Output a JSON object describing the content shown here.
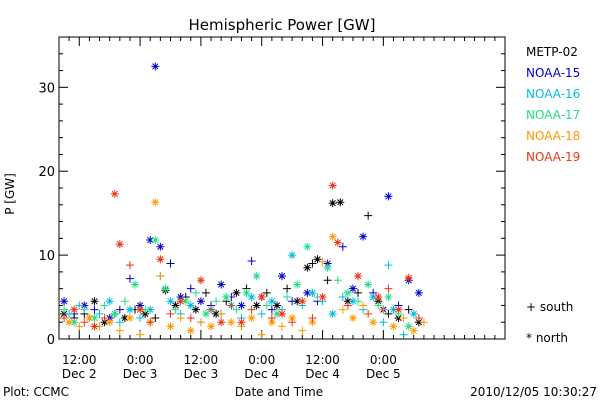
{
  "chart_data": {
    "type": "scatter",
    "title": "Hemispheric Power [GW]",
    "xlabel": "Date and Time",
    "ylabel": "P [GW]",
    "ylim": [
      0,
      36
    ],
    "xlim_hours": [
      -4,
      84
    ],
    "yticks": [
      0,
      10,
      20,
      30
    ],
    "xticks": [
      {
        "h": 0,
        "time": "12:00",
        "date": "Dec 2"
      },
      {
        "h": 12,
        "time": "0:00",
        "date": "Dec 3"
      },
      {
        "h": 24,
        "time": "12:00",
        "date": "Dec 3"
      },
      {
        "h": 36,
        "time": "0:00",
        "date": "Dec 4"
      },
      {
        "h": 48,
        "time": "12:00",
        "date": "Dec 4"
      },
      {
        "h": 60,
        "time": "0:00",
        "date": "Dec 5"
      }
    ],
    "marker_legend": [
      {
        "symbol": "+",
        "label": "south"
      },
      {
        "symbol": "*",
        "label": "north"
      }
    ],
    "series": [
      {
        "name": "METP-02",
        "color": "#000000",
        "points": [
          [
            -3,
            3,
            "n"
          ],
          [
            -1,
            2.5,
            "s"
          ],
          [
            1,
            3,
            "s"
          ],
          [
            3,
            4.5,
            "n"
          ],
          [
            5,
            2,
            "n"
          ],
          [
            7,
            3,
            "s"
          ],
          [
            9,
            2.5,
            "n"
          ],
          [
            11,
            3.5,
            "s"
          ],
          [
            13,
            3,
            "n"
          ],
          [
            15,
            2.5,
            "s"
          ],
          [
            17,
            5.8,
            "n"
          ],
          [
            19,
            4,
            "n"
          ],
          [
            21,
            5,
            "s"
          ],
          [
            23,
            3.5,
            "n"
          ],
          [
            25,
            5.5,
            "s"
          ],
          [
            27,
            3,
            "n"
          ],
          [
            29,
            4.5,
            "s"
          ],
          [
            31,
            5.5,
            "n"
          ],
          [
            33,
            6,
            "s"
          ],
          [
            35,
            4,
            "n"
          ],
          [
            37,
            5.5,
            "s"
          ],
          [
            39,
            4,
            "n"
          ],
          [
            41,
            6,
            "s"
          ],
          [
            43,
            4.5,
            "n"
          ],
          [
            45,
            8.5,
            "n"
          ],
          [
            46,
            9,
            "s"
          ],
          [
            47,
            9.5,
            "n"
          ],
          [
            49,
            7,
            "s"
          ],
          [
            50,
            16.2,
            "n"
          ],
          [
            51.5,
            16.3,
            "n"
          ],
          [
            53,
            4.5,
            "n"
          ],
          [
            55,
            5.5,
            "s"
          ],
          [
            57,
            14.7,
            "s"
          ],
          [
            59,
            4.5,
            "n"
          ],
          [
            61,
            3,
            "s"
          ],
          [
            63,
            2.5,
            "n"
          ],
          [
            65,
            3.5,
            "s"
          ],
          [
            67,
            2,
            "n"
          ]
        ]
      },
      {
        "name": "NOAA-15",
        "color": "#0000cc",
        "points": [
          [
            -3,
            4.5,
            "n"
          ],
          [
            -1,
            3,
            "s"
          ],
          [
            1,
            4,
            "n"
          ],
          [
            3,
            3.5,
            "s"
          ],
          [
            6,
            2.5,
            "n"
          ],
          [
            8,
            3.5,
            "s"
          ],
          [
            10,
            7.2,
            "s"
          ],
          [
            12,
            4,
            "n"
          ],
          [
            14,
            11.8,
            "n"
          ],
          [
            15,
            32.5,
            "n"
          ],
          [
            16,
            11,
            "n"
          ],
          [
            18,
            9,
            "s"
          ],
          [
            20,
            5,
            "n"
          ],
          [
            22,
            6,
            "s"
          ],
          [
            24,
            4.5,
            "n"
          ],
          [
            26,
            4,
            "s"
          ],
          [
            28,
            6.5,
            "n"
          ],
          [
            30,
            5,
            "s"
          ],
          [
            32,
            4,
            "n"
          ],
          [
            34,
            9.3,
            "s"
          ],
          [
            36,
            5,
            "n"
          ],
          [
            38,
            3.5,
            "s"
          ],
          [
            40,
            7.5,
            "n"
          ],
          [
            42,
            4.5,
            "s"
          ],
          [
            45,
            5.5,
            "n"
          ],
          [
            47,
            4.5,
            "s"
          ],
          [
            49,
            9,
            "n"
          ],
          [
            52,
            11,
            "s"
          ],
          [
            54,
            6,
            "n"
          ],
          [
            56,
            12.2,
            "n"
          ],
          [
            58,
            5.5,
            "s"
          ],
          [
            60,
            3.5,
            "n"
          ],
          [
            61,
            17,
            "n"
          ],
          [
            63,
            4,
            "s"
          ],
          [
            65,
            7,
            "n"
          ],
          [
            67,
            5.5,
            "n"
          ]
        ]
      },
      {
        "name": "NOAA-16",
        "color": "#00bbdd",
        "points": [
          [
            -2,
            3,
            "s"
          ],
          [
            0,
            4,
            "s"
          ],
          [
            2,
            2.5,
            "n"
          ],
          [
            4,
            3,
            "s"
          ],
          [
            6,
            4.5,
            "n"
          ],
          [
            8,
            2,
            "s"
          ],
          [
            10,
            3.5,
            "n"
          ],
          [
            12,
            2.5,
            "s"
          ],
          [
            14,
            3.5,
            "n"
          ],
          [
            16,
            7.5,
            "s"
          ],
          [
            18,
            4.5,
            "n"
          ],
          [
            20,
            3,
            "s"
          ],
          [
            22,
            4,
            "n"
          ],
          [
            24,
            2,
            "s"
          ],
          [
            26,
            3.5,
            "n"
          ],
          [
            28,
            3,
            "s"
          ],
          [
            30,
            4,
            "n"
          ],
          [
            32,
            2.5,
            "s"
          ],
          [
            34,
            5,
            "n"
          ],
          [
            36,
            3,
            "s"
          ],
          [
            38,
            4.5,
            "n"
          ],
          [
            40,
            3.5,
            "s"
          ],
          [
            42,
            10,
            "n"
          ],
          [
            44,
            4,
            "s"
          ],
          [
            46,
            5.5,
            "n"
          ],
          [
            48,
            4.5,
            "s"
          ],
          [
            50,
            3,
            "n"
          ],
          [
            52,
            5,
            "s"
          ],
          [
            54,
            4.5,
            "n"
          ],
          [
            56,
            3.5,
            "s"
          ],
          [
            58,
            5,
            "n"
          ],
          [
            60,
            2,
            "s"
          ],
          [
            61,
            8.8,
            "s"
          ],
          [
            62,
            3.5,
            "n"
          ],
          [
            64,
            0.5,
            "s"
          ],
          [
            66,
            3,
            "n"
          ]
        ]
      },
      {
        "name": "NOAA-17",
        "color": "#22dd88",
        "points": [
          [
            -3,
            3.5,
            "s"
          ],
          [
            -1,
            2,
            "n"
          ],
          [
            1,
            3.5,
            "s"
          ],
          [
            3,
            2.5,
            "n"
          ],
          [
            5,
            4,
            "s"
          ],
          [
            7,
            3,
            "n"
          ],
          [
            9,
            4.5,
            "s"
          ],
          [
            11,
            6.5,
            "n"
          ],
          [
            13,
            3.5,
            "s"
          ],
          [
            15,
            11.8,
            "n"
          ],
          [
            17,
            6,
            "n"
          ],
          [
            19,
            3.5,
            "s"
          ],
          [
            21,
            4.5,
            "n"
          ],
          [
            23,
            5.5,
            "s"
          ],
          [
            25,
            3,
            "n"
          ],
          [
            27,
            4.5,
            "s"
          ],
          [
            29,
            5,
            "n"
          ],
          [
            31,
            3.5,
            "s"
          ],
          [
            33,
            5.5,
            "n"
          ],
          [
            35,
            7.5,
            "n"
          ],
          [
            37,
            4,
            "s"
          ],
          [
            39,
            3,
            "n"
          ],
          [
            41,
            5,
            "s"
          ],
          [
            43,
            6.5,
            "n"
          ],
          [
            45,
            11,
            "n"
          ],
          [
            47,
            5,
            "s"
          ],
          [
            49,
            8.5,
            "n"
          ],
          [
            51,
            7,
            "s"
          ],
          [
            53,
            5.5,
            "n"
          ],
          [
            55,
            4.5,
            "s"
          ],
          [
            57,
            6.5,
            "n"
          ],
          [
            59,
            4,
            "s"
          ],
          [
            61,
            5,
            "n"
          ],
          [
            63,
            3,
            "s"
          ],
          [
            65,
            1.5,
            "n"
          ]
        ]
      },
      {
        "name": "NOAA-18",
        "color": "#ff9900",
        "points": [
          [
            -2,
            2,
            "n"
          ],
          [
            0,
            1.5,
            "s"
          ],
          [
            2,
            2.5,
            "n"
          ],
          [
            4,
            1.5,
            "s"
          ],
          [
            6,
            2,
            "n"
          ],
          [
            8,
            1,
            "s"
          ],
          [
            10,
            2.5,
            "n"
          ],
          [
            12,
            0.5,
            "s"
          ],
          [
            14,
            2,
            "n"
          ],
          [
            15,
            16.3,
            "n"
          ],
          [
            16,
            7.5,
            "s"
          ],
          [
            18,
            1.5,
            "n"
          ],
          [
            20,
            2.5,
            "s"
          ],
          [
            22,
            1,
            "n"
          ],
          [
            24,
            2,
            "s"
          ],
          [
            26,
            1.5,
            "n"
          ],
          [
            28,
            3,
            "s"
          ],
          [
            30,
            2,
            "n"
          ],
          [
            32,
            1.5,
            "s"
          ],
          [
            34,
            2.5,
            "n"
          ],
          [
            36,
            0.5,
            "s"
          ],
          [
            38,
            2,
            "n"
          ],
          [
            40,
            1.5,
            "s"
          ],
          [
            42,
            2.5,
            "n"
          ],
          [
            44,
            1,
            "s"
          ],
          [
            46,
            2,
            "n"
          ],
          [
            48,
            9.2,
            "s"
          ],
          [
            50,
            12.2,
            "n"
          ],
          [
            52,
            3.5,
            "s"
          ],
          [
            54,
            2.5,
            "n"
          ],
          [
            56,
            4,
            "s"
          ],
          [
            58,
            2,
            "n"
          ],
          [
            60,
            3.5,
            "s"
          ],
          [
            62,
            1.5,
            "n"
          ],
          [
            64,
            2.5,
            "s"
          ],
          [
            66,
            1,
            "n"
          ],
          [
            68,
            2,
            "s"
          ]
        ]
      },
      {
        "name": "NOAA-19",
        "color": "#ee3311",
        "points": [
          [
            -3,
            2.5,
            "s"
          ],
          [
            -1,
            3.5,
            "n"
          ],
          [
            1,
            2,
            "s"
          ],
          [
            3,
            1.5,
            "n"
          ],
          [
            5,
            2.5,
            "s"
          ],
          [
            7,
            17.3,
            "n"
          ],
          [
            8,
            11.3,
            "n"
          ],
          [
            10,
            8.8,
            "s"
          ],
          [
            12,
            3.5,
            "n"
          ],
          [
            14,
            2,
            "s"
          ],
          [
            16,
            9.5,
            "n"
          ],
          [
            18,
            3,
            "s"
          ],
          [
            20,
            4.5,
            "n"
          ],
          [
            22,
            2.5,
            "s"
          ],
          [
            24,
            7,
            "n"
          ],
          [
            26,
            3.5,
            "s"
          ],
          [
            28,
            2,
            "n"
          ],
          [
            30,
            4,
            "s"
          ],
          [
            32,
            2,
            "n"
          ],
          [
            34,
            3.5,
            "s"
          ],
          [
            36,
            5,
            "n"
          ],
          [
            38,
            2.5,
            "s"
          ],
          [
            40,
            3,
            "n"
          ],
          [
            42,
            2,
            "s"
          ],
          [
            44,
            4.5,
            "n"
          ],
          [
            46,
            2.5,
            "s"
          ],
          [
            48,
            5,
            "n"
          ],
          [
            50,
            18.3,
            "n"
          ],
          [
            51,
            11.5,
            "n"
          ],
          [
            53,
            4,
            "s"
          ],
          [
            55,
            7.5,
            "n"
          ],
          [
            57,
            3,
            "s"
          ],
          [
            59,
            5,
            "n"
          ],
          [
            61,
            6,
            "s"
          ],
          [
            63,
            3.5,
            "n"
          ],
          [
            65,
            7.3,
            "n"
          ],
          [
            67,
            2.5,
            "s"
          ]
        ]
      }
    ]
  },
  "footer": {
    "left": "Plot: CCMC",
    "center": "Date and Time",
    "right": "2010/12/05 10:30:27"
  }
}
